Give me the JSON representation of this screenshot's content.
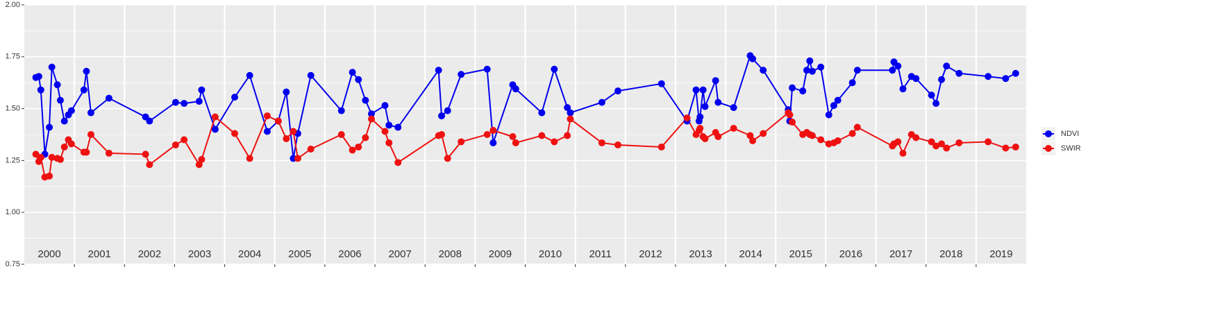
{
  "chart_data": {
    "type": "line",
    "x": [
      2000.23,
      2000.29,
      2000.33,
      2000.41,
      2000.5,
      2000.55,
      2000.66,
      2000.72,
      2000.8,
      2000.88,
      2000.94,
      2001.19,
      2001.24,
      2001.33,
      2001.69,
      2002.42,
      2002.5,
      2003.02,
      2003.19,
      2003.49,
      2003.54,
      2003.81,
      2004.2,
      2004.5,
      2004.85,
      2005.07,
      2005.23,
      2005.37,
      2005.46,
      2005.72,
      2006.33,
      2006.55,
      2006.67,
      2006.81,
      2006.93,
      2007.2,
      2007.28,
      2007.46,
      2008.27,
      2008.33,
      2008.45,
      2008.72,
      2009.24,
      2009.36,
      2009.75,
      2009.81,
      2010.33,
      2010.58,
      2010.84,
      2010.9,
      2011.53,
      2011.85,
      2012.72,
      2013.23,
      2013.41,
      2013.47,
      2013.49,
      2013.55,
      2013.59,
      2013.8,
      2013.85,
      2014.16,
      2014.49,
      2014.54,
      2014.75,
      2015.25,
      2015.28,
      2015.33,
      2015.54,
      2015.62,
      2015.68,
      2015.73,
      2015.9,
      2016.06,
      2016.16,
      2016.24,
      2016.53,
      2016.63,
      2017.33,
      2017.36,
      2017.44,
      2017.54,
      2017.71,
      2017.8,
      2018.11,
      2018.2,
      2018.31,
      2018.41,
      2018.66,
      2019.24,
      2019.59,
      2019.79
    ],
    "series": [
      {
        "name": "NDVI",
        "color": "#0000ee",
        "values": [
          1.65,
          1.655,
          1.59,
          1.28,
          1.41,
          1.7,
          1.615,
          1.54,
          1.44,
          1.47,
          1.49,
          1.59,
          1.68,
          1.48,
          1.55,
          1.46,
          1.44,
          1.53,
          1.525,
          1.535,
          1.59,
          1.4,
          1.555,
          1.66,
          1.39,
          1.44,
          1.58,
          1.26,
          1.38,
          1.66,
          1.49,
          1.675,
          1.64,
          1.54,
          1.475,
          1.515,
          1.42,
          1.41,
          1.685,
          1.465,
          1.49,
          1.665,
          1.69,
          1.335,
          1.615,
          1.595,
          1.48,
          1.69,
          1.505,
          1.48,
          1.53,
          1.585,
          1.62,
          1.44,
          1.59,
          1.44,
          1.46,
          1.59,
          1.51,
          1.635,
          1.53,
          1.505,
          1.755,
          1.74,
          1.685,
          1.495,
          1.44,
          1.6,
          1.585,
          1.685,
          1.73,
          1.68,
          1.7,
          1.47,
          1.515,
          1.54,
          1.625,
          1.685,
          1.685,
          1.725,
          1.705,
          1.595,
          1.655,
          1.645,
          1.565,
          1.525,
          1.64,
          1.705,
          1.67,
          1.655,
          1.645,
          1.67
        ]
      },
      {
        "name": "SWIR",
        "color": "#ee1111",
        "values": [
          1.28,
          1.245,
          1.265,
          1.17,
          1.175,
          1.265,
          1.26,
          1.255,
          1.315,
          1.35,
          1.33,
          1.29,
          1.29,
          1.375,
          1.285,
          1.28,
          1.23,
          1.325,
          1.35,
          1.23,
          1.255,
          1.46,
          1.38,
          1.26,
          1.465,
          1.44,
          1.355,
          1.39,
          1.26,
          1.305,
          1.375,
          1.3,
          1.315,
          1.36,
          1.45,
          1.39,
          1.335,
          1.24,
          1.37,
          1.375,
          1.26,
          1.34,
          1.375,
          1.395,
          1.365,
          1.335,
          1.37,
          1.34,
          1.37,
          1.45,
          1.335,
          1.325,
          1.315,
          1.455,
          1.375,
          1.395,
          1.405,
          1.365,
          1.355,
          1.385,
          1.365,
          1.405,
          1.37,
          1.345,
          1.38,
          1.48,
          1.47,
          1.435,
          1.375,
          1.385,
          1.375,
          1.37,
          1.35,
          1.33,
          1.335,
          1.345,
          1.38,
          1.41,
          1.32,
          1.33,
          1.34,
          1.285,
          1.375,
          1.36,
          1.34,
          1.32,
          1.33,
          1.31,
          1.335,
          1.34,
          1.31,
          1.315
        ]
      }
    ],
    "xlim": [
      2000,
      2020
    ],
    "xgrid": [
      2001,
      2002,
      2003,
      2004,
      2005,
      2006,
      2007,
      2008,
      2009,
      2010,
      2011,
      2012,
      2013,
      2014,
      2015,
      2016,
      2017,
      2018,
      2019
    ],
    "year_labels": [
      {
        "value": 2000.5,
        "label": "2000"
      },
      {
        "value": 2001.5,
        "label": "2001"
      },
      {
        "value": 2002.5,
        "label": "2002"
      },
      {
        "value": 2003.5,
        "label": "2003"
      },
      {
        "value": 2004.5,
        "label": "2004"
      },
      {
        "value": 2005.5,
        "label": "2005"
      },
      {
        "value": 2006.5,
        "label": "2006"
      },
      {
        "value": 2007.5,
        "label": "2007"
      },
      {
        "value": 2008.5,
        "label": "2008"
      },
      {
        "value": 2009.5,
        "label": "2009"
      },
      {
        "value": 2010.5,
        "label": "2010"
      },
      {
        "value": 2011.5,
        "label": "2011"
      },
      {
        "value": 2012.5,
        "label": "2012"
      },
      {
        "value": 2013.5,
        "label": "2013"
      },
      {
        "value": 2014.5,
        "label": "2014"
      },
      {
        "value": 2015.5,
        "label": "2015"
      },
      {
        "value": 2016.5,
        "label": "2016"
      },
      {
        "value": 2017.5,
        "label": "2017"
      },
      {
        "value": 2018.5,
        "label": "2018"
      },
      {
        "value": 2019.5,
        "label": "2019"
      }
    ],
    "ylim": [
      0.75,
      2.0
    ],
    "yticks": [
      {
        "value": 0.75,
        "label": "0.75"
      },
      {
        "value": 1.0,
        "label": "1.00"
      },
      {
        "value": 1.25,
        "label": "1.25"
      },
      {
        "value": 1.5,
        "label": "1.50"
      },
      {
        "value": 1.75,
        "label": "1.75"
      },
      {
        "value": 2.0,
        "label": "2.00"
      }
    ],
    "grid": true,
    "legend": "right"
  }
}
